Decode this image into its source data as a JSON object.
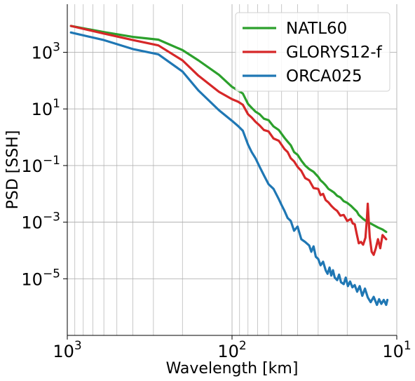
{
  "chart_data": {
    "type": "line",
    "xlabel": "Wavelength [km]",
    "ylabel": "PSD [SSH]",
    "x_scale": "log",
    "y_scale": "log",
    "x_reversed": true,
    "xlim": [
      1000,
      10
    ],
    "ylim": [
      1e-07,
      50000.0
    ],
    "grid": true,
    "legend_position": "top-right",
    "x_ticks": [
      {
        "value": 1000,
        "base": "10",
        "exp": "3"
      },
      {
        "value": 100,
        "base": "10",
        "exp": "2"
      },
      {
        "value": 10,
        "base": "10",
        "exp": "1"
      }
    ],
    "y_ticks": [
      {
        "value": 1000,
        "base": "10",
        "exp": "3"
      },
      {
        "value": 10,
        "base": "10",
        "exp": "1"
      },
      {
        "value": 0.1,
        "base": "10",
        "exp": "−1"
      },
      {
        "value": 0.001,
        "base": "10",
        "exp": "−3"
      },
      {
        "value": 1e-05,
        "base": "10",
        "exp": "−5"
      }
    ],
    "series": [
      {
        "name": "NATL60",
        "color": "#2ca02c",
        "points": [
          [
            950,
            8500
          ],
          [
            600,
            5200
          ],
          [
            400,
            3500
          ],
          [
            280,
            2800
          ],
          [
            200,
            1200
          ],
          [
            160,
            520
          ],
          [
            120,
            160
          ],
          [
            100,
            60
          ],
          [
            92,
            45
          ],
          [
            86,
            35
          ],
          [
            80,
            15
          ],
          [
            76,
            11
          ],
          [
            72,
            8
          ],
          [
            68,
            6.5
          ],
          [
            64,
            4.5
          ],
          [
            60,
            4
          ],
          [
            56,
            2.4
          ],
          [
            52,
            1.8
          ],
          [
            48,
            0.95
          ],
          [
            46,
            0.7
          ],
          [
            44,
            0.52
          ],
          [
            42,
            0.3
          ],
          [
            40,
            0.24
          ],
          [
            38,
            0.15
          ],
          [
            36,
            0.1
          ],
          [
            34,
            0.075
          ],
          [
            32,
            0.06
          ],
          [
            30,
            0.04
          ],
          [
            29,
            0.03
          ],
          [
            28,
            0.025
          ],
          [
            27,
            0.02
          ],
          [
            26,
            0.015
          ],
          [
            25,
            0.013
          ],
          [
            24,
            0.011
          ],
          [
            23,
            0.0085
          ],
          [
            22,
            0.0075
          ],
          [
            21,
            0.0055
          ],
          [
            20,
            0.0048
          ],
          [
            19,
            0.0038
          ],
          [
            18,
            0.0028
          ],
          [
            17.5,
            0.0024
          ],
          [
            17,
            0.0018
          ],
          [
            16,
            0.0013
          ],
          [
            15,
            0.001
          ],
          [
            14,
            0.00082
          ],
          [
            13,
            0.00065
          ],
          [
            12.2,
            0.00055
          ],
          [
            11.6,
            0.00045
          ]
        ]
      },
      {
        "name": "GLORYS12-f",
        "color": "#d62728",
        "points": [
          [
            950,
            8500
          ],
          [
            600,
            4600
          ],
          [
            400,
            2700
          ],
          [
            280,
            1750
          ],
          [
            200,
            520
          ],
          [
            160,
            150
          ],
          [
            120,
            40
          ],
          [
            100,
            22
          ],
          [
            92,
            18
          ],
          [
            86,
            14
          ],
          [
            80,
            6.5
          ],
          [
            76,
            5
          ],
          [
            72,
            3.5
          ],
          [
            68,
            2.6
          ],
          [
            64,
            1.8
          ],
          [
            60,
            1.6
          ],
          [
            56,
            0.9
          ],
          [
            52,
            0.75
          ],
          [
            48,
            0.38
          ],
          [
            46,
            0.3
          ],
          [
            44,
            0.18
          ],
          [
            42,
            0.14
          ],
          [
            40,
            0.09
          ],
          [
            38,
            0.065
          ],
          [
            36,
            0.036
          ],
          [
            34,
            0.03
          ],
          [
            32,
            0.016
          ],
          [
            30,
            0.015
          ],
          [
            29,
            0.009
          ],
          [
            28,
            0.01
          ],
          [
            27,
            0.006
          ],
          [
            26,
            0.005
          ],
          [
            25,
            0.0038
          ],
          [
            24,
            0.003
          ],
          [
            23,
            0.0025
          ],
          [
            22,
            0.0017
          ],
          [
            21,
            0.0018
          ],
          [
            20,
            0.0011
          ],
          [
            19,
            0.0013
          ],
          [
            18.5,
            0.0009
          ],
          [
            18,
            0.00085
          ],
          [
            17.5,
            0.00038
          ],
          [
            17,
            0.00018
          ],
          [
            16.5,
            0.0002
          ],
          [
            16,
            0.00016
          ],
          [
            15.5,
            0.00028
          ],
          [
            15.2,
            0.0012
          ],
          [
            15,
            0.0045
          ],
          [
            14.8,
            0.0011
          ],
          [
            14.6,
            0.0003
          ],
          [
            14.2,
            9e-05
          ],
          [
            13.8,
            7e-05
          ],
          [
            13.4,
            0.00012
          ],
          [
            13,
            0.00025
          ],
          [
            12.6,
            0.00012
          ],
          [
            12.2,
            0.00035
          ],
          [
            11.6,
            0.00025
          ]
        ]
      },
      {
        "name": "ORCA025",
        "color": "#1f77b4",
        "points": [
          [
            950,
            5000
          ],
          [
            600,
            2700
          ],
          [
            400,
            1300
          ],
          [
            280,
            850
          ],
          [
            200,
            210
          ],
          [
            160,
            45
          ],
          [
            120,
            9
          ],
          [
            100,
            3.8
          ],
          [
            92,
            2.5
          ],
          [
            86,
            1.7
          ],
          [
            80,
            0.55
          ],
          [
            76,
            0.3
          ],
          [
            72,
            0.18
          ],
          [
            68,
            0.09
          ],
          [
            64,
            0.045
          ],
          [
            60,
            0.022
          ],
          [
            56,
            0.015
          ],
          [
            52,
            0.0065
          ],
          [
            50,
            0.004
          ],
          [
            48,
            0.0025
          ],
          [
            46,
            0.0014
          ],
          [
            44,
            0.0011
          ],
          [
            42,
            0.0005
          ],
          [
            40,
            0.0007
          ],
          [
            38,
            0.00025
          ],
          [
            36,
            0.0002
          ],
          [
            34,
            0.00015
          ],
          [
            33,
            9e-05
          ],
          [
            32,
            0.00014
          ],
          [
            31,
            6e-05
          ],
          [
            30,
            5e-05
          ],
          [
            29,
            3e-05
          ],
          [
            28,
            4e-05
          ],
          [
            27,
            2e-05
          ],
          [
            26.3,
            1.5e-05
          ],
          [
            25.6,
            2.5e-05
          ],
          [
            25,
            1.3e-05
          ],
          [
            24.4,
            2e-05
          ],
          [
            23.8,
            1.1e-05
          ],
          [
            23,
            9e-06
          ],
          [
            22.4,
            1.4e-05
          ],
          [
            21.8,
            7.5e-06
          ],
          [
            21,
            6.5e-06
          ],
          [
            20.4,
            1.1e-05
          ],
          [
            19.8,
            5.5e-06
          ],
          [
            19.2,
            8e-06
          ],
          [
            18.6,
            5e-06
          ],
          [
            18,
            6e-06
          ],
          [
            17.4,
            3.5e-06
          ],
          [
            16.8,
            5.5e-06
          ],
          [
            16.2,
            2.5e-06
          ],
          [
            15.6,
            4.5e-06
          ],
          [
            15,
            2.2e-06
          ],
          [
            14.4,
            1.5e-06
          ],
          [
            13.8,
            2.3e-06
          ],
          [
            13.2,
            1.2e-06
          ],
          [
            12.8,
            1.9e-06
          ],
          [
            12.4,
            1.3e-06
          ],
          [
            12,
            1.8e-06
          ],
          [
            11.6,
            1.2e-06
          ],
          [
            11.4,
            1.8e-06
          ]
        ]
      }
    ]
  }
}
